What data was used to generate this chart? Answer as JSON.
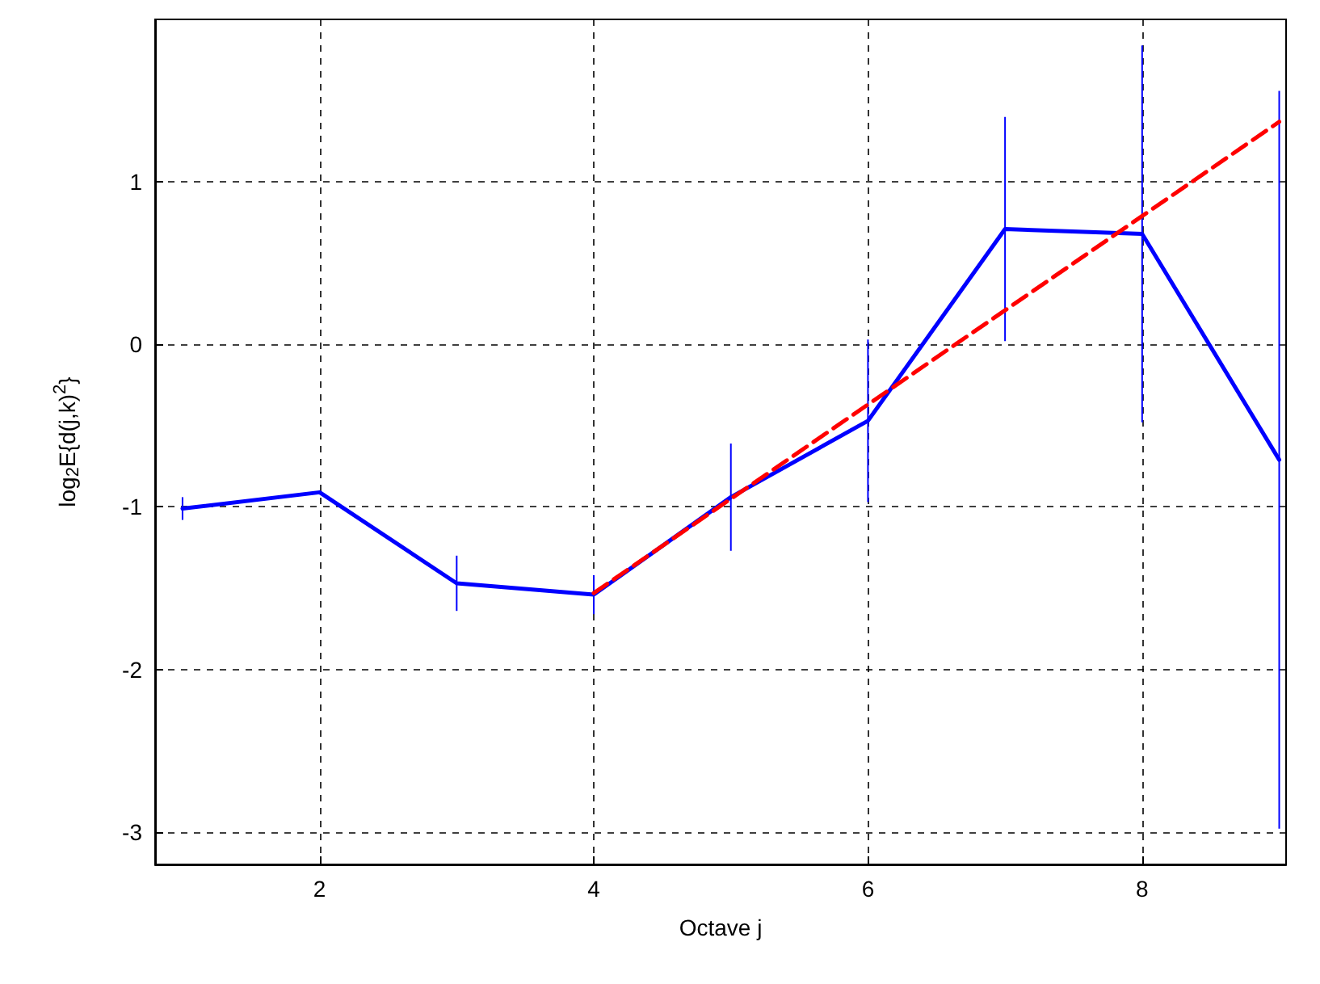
{
  "chart_data": {
    "type": "line",
    "xlabel": "Octave j",
    "ylabel": "log$_{2}$E{d(j,k)$^{2}$}",
    "x": [
      1,
      2,
      3,
      4,
      5,
      6,
      7,
      8,
      9
    ],
    "series": [
      {
        "color": "#0000ff",
        "values": [
          -1.01,
          -0.91,
          -1.47,
          -1.54,
          -0.94,
          -0.47,
          0.71,
          0.68,
          -0.71
        ],
        "errors": [
          0.07,
          null,
          0.17,
          0.12,
          0.33,
          0.5,
          0.69,
          1.16,
          2.27
        ],
        "line_style": "solid"
      },
      {
        "color": "#ff0000",
        "x": [
          4,
          9
        ],
        "values": [
          -1.53,
          1.37
        ],
        "line_style": "dashed"
      }
    ],
    "xlim": [
      0.8,
      9.05
    ],
    "ylim": [
      -3.2,
      2
    ],
    "xticks": [
      2,
      4,
      6,
      8
    ],
    "yticks": [
      -3,
      -2,
      -1,
      0,
      1
    ],
    "grid": true,
    "marker": "none"
  }
}
